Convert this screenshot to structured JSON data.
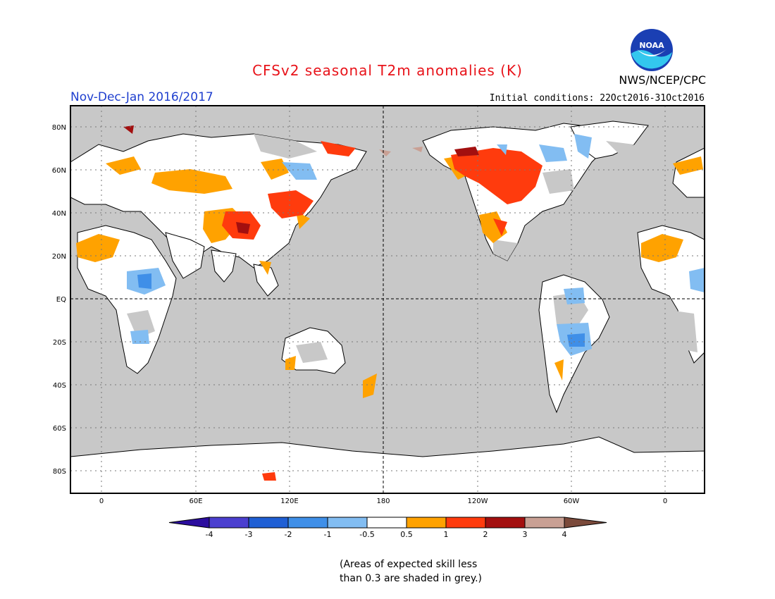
{
  "header": {
    "title": "CFSv2 seasonal T2m anomalies (K)",
    "period": "Nov-Dec-Jan 2016/2017",
    "initial_conditions": "Initial conditions: 22Oct2016-31Oct2016",
    "agency": "NWS/NCEP/CPC",
    "logo_text": "NOAA"
  },
  "map": {
    "projection": "equirectangular",
    "lon_labels": [
      "0",
      "60E",
      "120E",
      "180",
      "120W",
      "60W",
      "0"
    ],
    "lat_labels": [
      "80N",
      "60N",
      "40N",
      "20N",
      "EQ",
      "20S",
      "40S",
      "60S",
      "80S"
    ],
    "background_color": "#c8c8c8"
  },
  "legend": {
    "ticks": [
      "-4",
      "-3",
      "-2",
      "-1",
      "-0.5",
      "0.5",
      "1",
      "2",
      "3",
      "4"
    ],
    "colors": [
      "#2b0d9e",
      "#4b3fcf",
      "#1f5fd4",
      "#3f8fe8",
      "#82bdf2",
      "#ffffff",
      "#ffa200",
      "#ff3b0d",
      "#a30f0f",
      "#c9a094",
      "#7b4a3b"
    ]
  },
  "footnote": {
    "line1": "(Areas of expected skill less",
    "line2": "than 0.3 are shaded in grey.)"
  }
}
